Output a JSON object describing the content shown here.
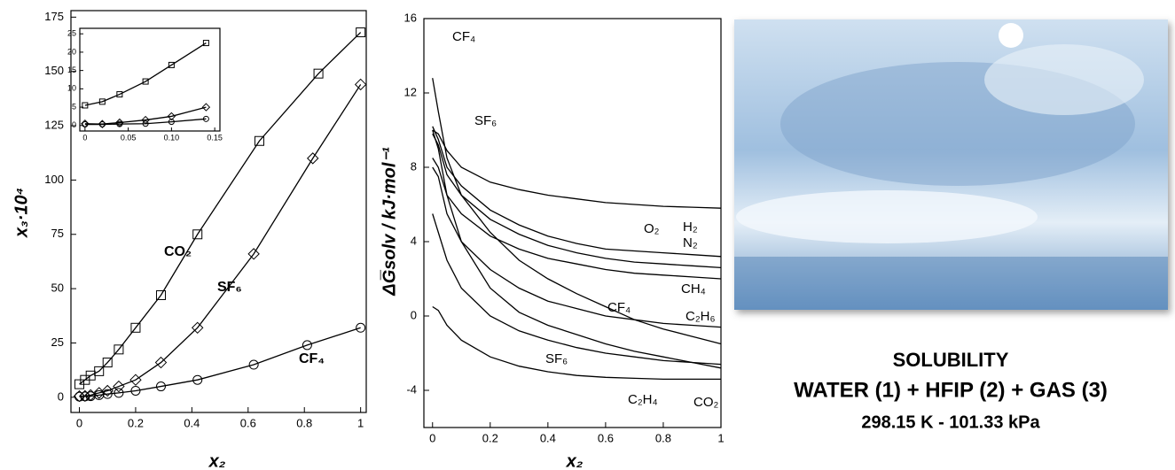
{
  "chart_data": [
    {
      "type": "line",
      "x_label": "x₂",
      "y_label": "x₃·10⁴",
      "color": "#000000",
      "xlim": [
        -0.03,
        1.02
      ],
      "ylim": [
        -7,
        178
      ],
      "xticks": [
        0,
        0.2,
        0.4,
        0.6,
        0.8,
        1
      ],
      "yticks": [
        0,
        25,
        50,
        75,
        100,
        125,
        150,
        175
      ],
      "series": [
        {
          "name": "CO₂",
          "marker": "square",
          "x": [
            0,
            0.02,
            0.04,
            0.07,
            0.1,
            0.14,
            0.2,
            0.29,
            0.42,
            0.64,
            0.85,
            1
          ],
          "values": [
            6,
            8,
            10,
            12,
            16,
            22,
            32,
            47,
            75,
            118,
            149,
            168
          ]
        },
        {
          "name": "SF₆",
          "marker": "diamond",
          "x": [
            0,
            0.02,
            0.04,
            0.07,
            0.1,
            0.14,
            0.2,
            0.29,
            0.42,
            0.62,
            0.83,
            1
          ],
          "values": [
            0.5,
            0.6,
            1,
            2,
            3,
            5,
            8,
            16,
            32,
            66,
            110,
            144
          ]
        },
        {
          "name": "CF₄",
          "marker": "circle",
          "x": [
            0,
            0.02,
            0.04,
            0.07,
            0.1,
            0.14,
            0.2,
            0.29,
            0.42,
            0.62,
            0.81,
            1
          ],
          "values": [
            0.3,
            0.4,
            0.5,
            1,
            1.5,
            2,
            3,
            5,
            8,
            15,
            24,
            32
          ]
        }
      ]
    },
    {
      "type": "line",
      "color": "#000000",
      "xlim": [
        -0.006,
        0.156
      ],
      "ylim": [
        -1.5,
        26.5
      ],
      "xticks": [
        0,
        0.05,
        {
          "value": 0.1,
          "label": "0.10"
        },
        0.15
      ],
      "yticks": [
        0,
        5,
        10,
        15,
        20,
        25
      ],
      "series": [
        {
          "name": "CO₂",
          "marker": "square",
          "x": [
            0,
            0.02,
            0.04,
            0.07,
            0.1,
            0.14
          ],
          "values": [
            5.5,
            6.5,
            8.5,
            12,
            16.5,
            22.5
          ]
        },
        {
          "name": "SF₆",
          "marker": "diamond",
          "x": [
            0,
            0.02,
            0.04,
            0.07,
            0.1,
            0.14
          ],
          "values": [
            0.5,
            0.4,
            0.8,
            1.5,
            2.5,
            5
          ]
        },
        {
          "name": "CF₄",
          "marker": "circle",
          "x": [
            0,
            0.02,
            0.04,
            0.07,
            0.1,
            0.14
          ],
          "values": [
            0.3,
            0.3,
            0.4,
            0.5,
            1,
            1.8
          ]
        }
      ]
    },
    {
      "type": "line",
      "x_label": "x₂",
      "y_label": "ΔG̅solv / kJ·mol⁻¹",
      "color": "#000000",
      "xlim": [
        -0.03,
        1
      ],
      "ylim": [
        -6,
        16
      ],
      "xticks": [
        0,
        0.2,
        0.4,
        0.6,
        0.8,
        1
      ],
      "yticks": [
        -4,
        0,
        4,
        8,
        12,
        16
      ],
      "x": [
        0,
        0.02,
        0.05,
        0.1,
        0.2,
        0.3,
        0.4,
        0.5,
        0.6,
        0.7,
        0.8,
        0.9,
        1
      ],
      "series": [
        {
          "name": "H₂",
          "values": [
            10,
            9.8,
            8.9,
            8,
            7.2,
            6.8,
            6.5,
            6.3,
            6.1,
            6,
            5.9,
            5.85,
            5.8
          ]
        },
        {
          "name": "O₂",
          "values": [
            9.8,
            9.2,
            7.6,
            6.5,
            5.2,
            4.4,
            3.8,
            3.4,
            3.1,
            2.9,
            2.8,
            2.7,
            2.6
          ]
        },
        {
          "name": "N₂",
          "values": [
            10.2,
            9.5,
            8,
            7,
            5.7,
            4.9,
            4.3,
            3.9,
            3.6,
            3.5,
            3.4,
            3.3,
            3.2
          ]
        },
        {
          "name": "CH₄",
          "values": [
            8.5,
            8,
            6.5,
            5.5,
            4.3,
            3.6,
            3.1,
            2.8,
            2.5,
            2.3,
            2.2,
            2.1,
            2
          ]
        },
        {
          "name": "CF₄",
          "values": [
            12.8,
            11,
            8.5,
            6.5,
            4.5,
            3,
            2,
            1.2,
            0.5,
            -0.2,
            -0.7,
            -1.1,
            -1.5
          ]
        },
        {
          "name": "C₂H₆",
          "values": [
            8,
            7.5,
            5.5,
            4,
            2.5,
            1.5,
            0.8,
            0.4,
            0,
            -0.2,
            -0.4,
            -0.5,
            -0.6
          ]
        },
        {
          "name": "SF₆",
          "values": [
            10,
            9,
            6.5,
            4,
            1.5,
            0.2,
            -0.5,
            -1,
            -1.5,
            -1.9,
            -2.2,
            -2.5,
            -2.8
          ]
        },
        {
          "name": "C₂H₄",
          "values": [
            5.5,
            4.5,
            3,
            1.5,
            0,
            -0.8,
            -1.3,
            -1.7,
            -2,
            -2.2,
            -2.4,
            -2.5,
            -2.6
          ]
        },
        {
          "name": "CO₂",
          "values": [
            0.5,
            0.3,
            -0.5,
            -1.3,
            -2.2,
            -2.7,
            -3,
            -3.2,
            -3.3,
            -3.35,
            -3.4,
            -3.4,
            -3.4
          ]
        }
      ]
    }
  ],
  "caption": {
    "title": "SOLUBILITY",
    "system": "WATER (1) + HFIP (2) + GAS (3)",
    "conditions": "298.15 K - 101.33 kPa"
  }
}
